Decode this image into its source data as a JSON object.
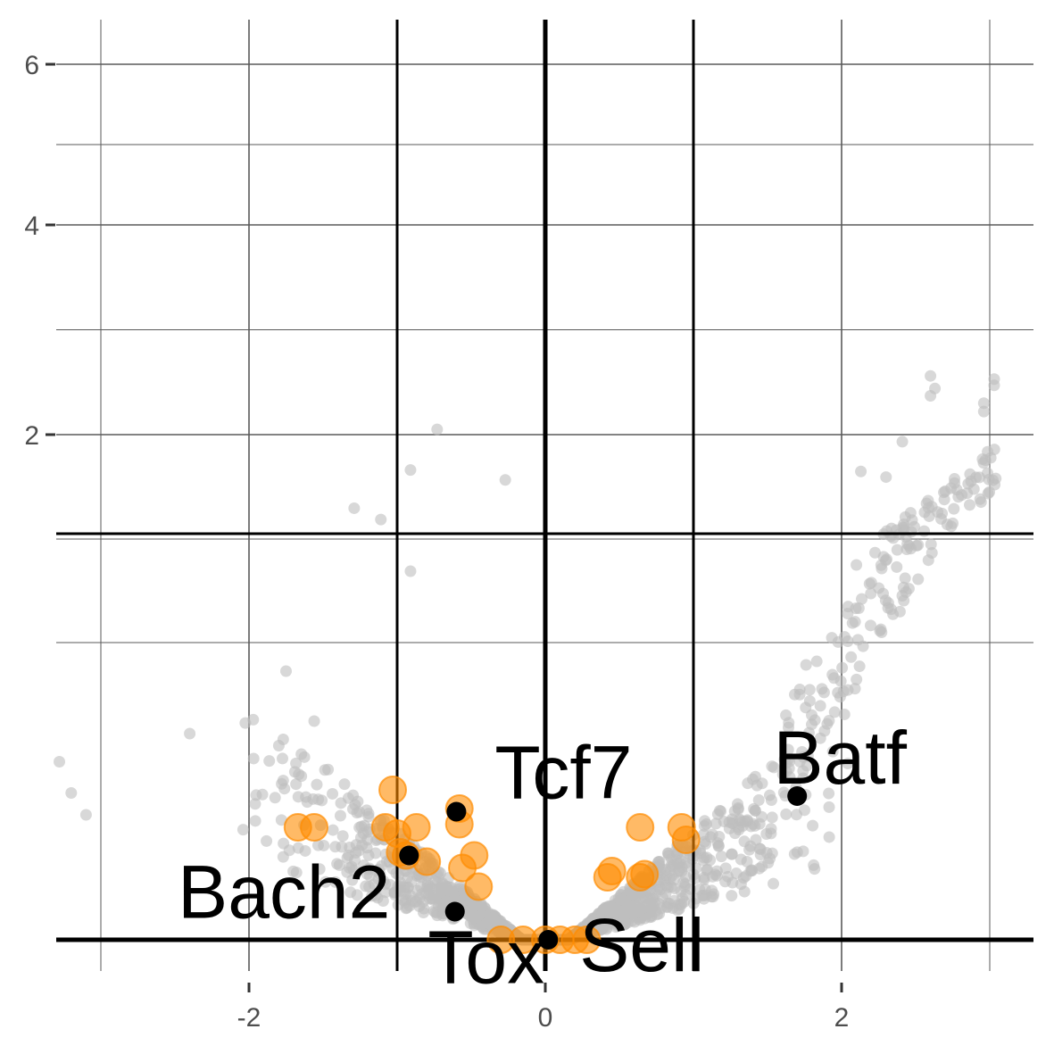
{
  "chart_data": {
    "type": "scatter",
    "title": "",
    "xlabel": "",
    "ylabel": "",
    "xlim": [
      -3.3,
      3.3
    ],
    "y_scale": "piecewise (linear between 0 and threshold, compressed above)",
    "ylim": [
      0,
      6.2
    ],
    "x_ticks": [
      -2,
      0,
      2
    ],
    "x_tick_labels": [
      "-2",
      "0",
      "2"
    ],
    "y_ticks": [
      2,
      4,
      6
    ],
    "y_tick_labels": [
      "2",
      "4",
      "6"
    ],
    "grid": true,
    "legend": "none",
    "reference_lines": {
      "vertical": [
        -1,
        0,
        1
      ],
      "horizontal": [
        0,
        1.3
      ]
    },
    "colors": {
      "background_points": "#bebebe",
      "highlight_points": "#ff8c00",
      "labeled_points": "#000000",
      "grid": "#5a5a5a",
      "reference": "#000000"
    },
    "labeled_genes": [
      {
        "label": "Batf",
        "x": 1.7,
        "y": 0.46
      },
      {
        "label": "Tcf7",
        "x": -0.6,
        "y": 0.41
      },
      {
        "label": "Bach2",
        "x": -0.92,
        "y": 0.27
      },
      {
        "label": "Tox",
        "x": -0.61,
        "y": 0.09
      },
      {
        "label": "Sell",
        "x": 0.02,
        "y": 0.0
      }
    ],
    "highlight_points": [
      {
        "x": -1.03,
        "y": 0.48
      },
      {
        "x": -0.58,
        "y": 0.42
      },
      {
        "x": -0.58,
        "y": 0.37
      },
      {
        "x": -0.87,
        "y": 0.36
      },
      {
        "x": -1.67,
        "y": 0.36
      },
      {
        "x": -1.56,
        "y": 0.36
      },
      {
        "x": -1.08,
        "y": 0.36
      },
      {
        "x": -1.0,
        "y": 0.34
      },
      {
        "x": -0.98,
        "y": 0.28
      },
      {
        "x": -0.94,
        "y": 0.27
      },
      {
        "x": -0.8,
        "y": 0.25
      },
      {
        "x": -0.48,
        "y": 0.27
      },
      {
        "x": -0.56,
        "y": 0.23
      },
      {
        "x": -0.45,
        "y": 0.17
      },
      {
        "x": 0.64,
        "y": 0.36
      },
      {
        "x": 0.92,
        "y": 0.36
      },
      {
        "x": 0.95,
        "y": 0.32
      },
      {
        "x": 0.45,
        "y": 0.22
      },
      {
        "x": 0.42,
        "y": 0.2
      },
      {
        "x": 0.64,
        "y": 0.2
      },
      {
        "x": 0.67,
        "y": 0.21
      },
      {
        "x": -0.3,
        "y": 0.0
      },
      {
        "x": -0.15,
        "y": 0.0
      },
      {
        "x": 0.0,
        "y": 0.0
      },
      {
        "x": 0.1,
        "y": 0.0
      },
      {
        "x": 0.2,
        "y": 0.0
      },
      {
        "x": 0.28,
        "y": 0.0
      }
    ]
  }
}
